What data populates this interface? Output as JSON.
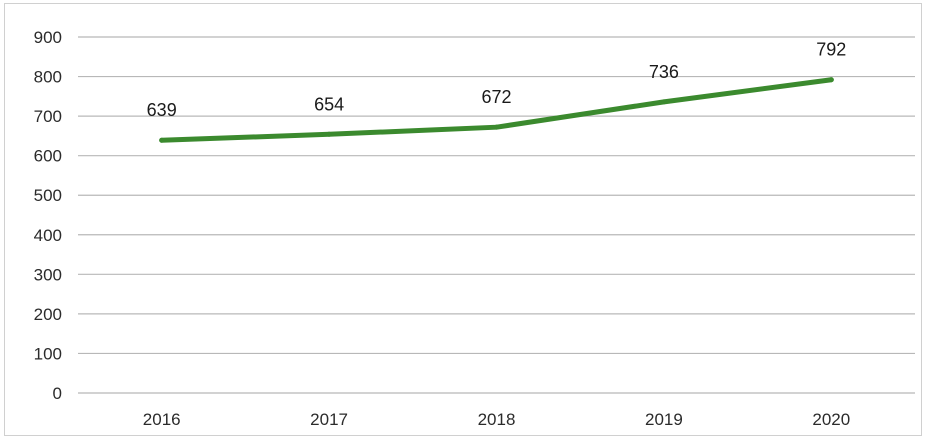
{
  "chart_data": {
    "type": "line",
    "title": "",
    "xlabel": "",
    "ylabel": "",
    "categories": [
      "2016",
      "2017",
      "2018",
      "2019",
      "2020"
    ],
    "series": [
      {
        "values": [
          639,
          654,
          672,
          736,
          792
        ],
        "color": "#3b8a2e"
      }
    ],
    "ylim": [
      0,
      900
    ],
    "yticks": [
      "0",
      "100",
      "200",
      "300",
      "400",
      "500",
      "600",
      "700",
      "800",
      "900"
    ],
    "data_labels": [
      "639",
      "654",
      "672",
      "736",
      "792"
    ],
    "grid": true,
    "legend": "none"
  }
}
